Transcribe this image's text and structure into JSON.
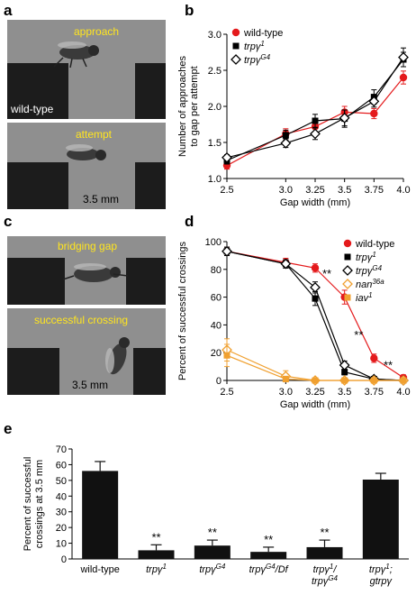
{
  "panels": {
    "a": "a",
    "b": "b",
    "c": "c",
    "d": "d",
    "e": "e"
  },
  "photos": {
    "a_top_caption": "approach",
    "a_top_label": "wild-type",
    "a_bottom_caption": "attempt",
    "a_bottom_scale": "3.5 mm",
    "c_top_caption": "bridging gap",
    "c_bottom_caption": "successful crossing",
    "c_bottom_scale": "3.5 mm"
  },
  "chart_data": [
    {
      "id": "b",
      "type": "line",
      "title": "",
      "xlabel": "Gap width (mm)",
      "ylabel": "Number of approaches to gap per attempt",
      "ylabel_lines": [
        "Number of approaches",
        "to gap per attempt"
      ],
      "x": [
        2.5,
        3.0,
        3.25,
        3.5,
        3.75,
        4.0
      ],
      "xticks": [
        "2.5",
        "3.0",
        "3.25",
        "3.5",
        "3.75",
        "4.0"
      ],
      "yticks": [
        "1.0",
        "1.5",
        "2.0",
        "2.5",
        "3.0"
      ],
      "ylim": [
        1.0,
        3.0
      ],
      "legend": "top-left",
      "series": [
        {
          "name": "wild-type",
          "marker": "circle",
          "color": "#e41a1c",
          "values": [
            1.18,
            1.62,
            1.72,
            1.92,
            1.9,
            2.4
          ],
          "err": [
            0.05,
            0.07,
            0.08,
            0.08,
            0.07,
            0.09
          ]
        },
        {
          "name": "trpγ1",
          "name_base": "trpγ",
          "name_sup": "1",
          "marker": "square",
          "color": "#000000",
          "values": [
            1.25,
            1.6,
            1.8,
            1.83,
            2.13,
            2.65
          ],
          "err": [
            0.05,
            0.07,
            0.09,
            0.12,
            0.1,
            0.1
          ]
        },
        {
          "name": "trpγG4",
          "name_base": "trpγ",
          "name_sup": "G4",
          "marker": "diamond",
          "color": "#000000",
          "values": [
            1.29,
            1.49,
            1.62,
            1.84,
            2.07,
            2.68
          ],
          "err": [
            0.04,
            0.06,
            0.08,
            0.11,
            0.08,
            0.13
          ]
        }
      ]
    },
    {
      "id": "d",
      "type": "line",
      "title": "",
      "xlabel": "Gap width (mm)",
      "ylabel": "Percent of successful crossings",
      "x": [
        2.5,
        3.0,
        3.25,
        3.5,
        3.75,
        4.0
      ],
      "xticks": [
        "2.5",
        "3.0",
        "3.25",
        "3.5",
        "3.75",
        "4.0"
      ],
      "yticks": [
        "0",
        "20",
        "40",
        "60",
        "80",
        "100"
      ],
      "ylim": [
        0,
        100
      ],
      "legend": "top-right",
      "annotations": [
        {
          "text": "**",
          "x": 3.35,
          "y": 74
        },
        {
          "text": "**",
          "x": 3.62,
          "y": 30
        },
        {
          "text": "**",
          "x": 3.87,
          "y": 8
        }
      ],
      "series": [
        {
          "name": "wild-type",
          "marker": "circle",
          "color": "#e41a1c",
          "values": [
            93,
            85,
            81,
            60,
            16,
            2
          ],
          "err": [
            3,
            3,
            3,
            5,
            3,
            2
          ]
        },
        {
          "name": "trpγ1",
          "name_base": "trpγ",
          "name_sup": "1",
          "marker": "square",
          "color": "#000000",
          "values": [
            93,
            84,
            59,
            6,
            1,
            0
          ],
          "err": [
            3,
            3,
            5,
            2,
            1,
            0
          ]
        },
        {
          "name": "trpγG4",
          "name_base": "trpγ",
          "name_sup": "G4",
          "marker": "diamond",
          "color": "#000000",
          "values": [
            93,
            84,
            67,
            11,
            1,
            0
          ],
          "err": [
            3,
            3,
            4,
            3,
            1,
            0
          ]
        },
        {
          "name": "nan36a",
          "name_base": "nan",
          "name_sup": "36a",
          "marker": "diamond-open",
          "color": "#f0a030",
          "values": [
            22,
            3,
            0,
            0,
            0,
            0
          ],
          "err": [
            8,
            4,
            0,
            0,
            0,
            0
          ]
        },
        {
          "name": "iav1",
          "name_base": "iav",
          "name_sup": "1",
          "marker": "square",
          "color": "#f0a030",
          "values": [
            18,
            1,
            0,
            0,
            0,
            0
          ],
          "err": [
            8,
            2,
            0,
            0,
            0,
            0
          ]
        }
      ]
    },
    {
      "id": "e",
      "type": "bar",
      "title": "",
      "xlabel": "",
      "ylabel": "Percent of successful crossings at 3.5 mm",
      "ylabel_lines": [
        "Percent of successful",
        "crossings at 3.5 mm"
      ],
      "yticks": [
        "0",
        "10",
        "20",
        "30",
        "40",
        "50",
        "60",
        "70"
      ],
      "ylim": [
        0,
        70
      ],
      "categories": [
        {
          "lines": [
            {
              "base": "wild-type",
              "sup": ""
            }
          ]
        },
        {
          "lines": [
            {
              "base": "trpγ",
              "sup": "1"
            }
          ]
        },
        {
          "lines": [
            {
              "base": "trpγ",
              "sup": "G4"
            }
          ]
        },
        {
          "lines": [
            {
              "base": "trpγ",
              "sup": "G4",
              "tail": "/Df"
            }
          ]
        },
        {
          "lines": [
            {
              "base": "trpγ",
              "sup": "1",
              "tail": "/"
            },
            {
              "base": "trpγ",
              "sup": "G4"
            }
          ]
        },
        {
          "lines": [
            {
              "base": "trpγ",
              "sup": "1",
              "tail": ";"
            },
            {
              "base": "gtrpγ",
              "sup": ""
            }
          ]
        }
      ],
      "values": [
        56,
        5.5,
        8.5,
        4.5,
        7.5,
        50.5
      ],
      "err": [
        6,
        3.5,
        3.5,
        3,
        4.5,
        4
      ],
      "significance": [
        "",
        "**",
        "**",
        "**",
        "**",
        ""
      ]
    }
  ]
}
